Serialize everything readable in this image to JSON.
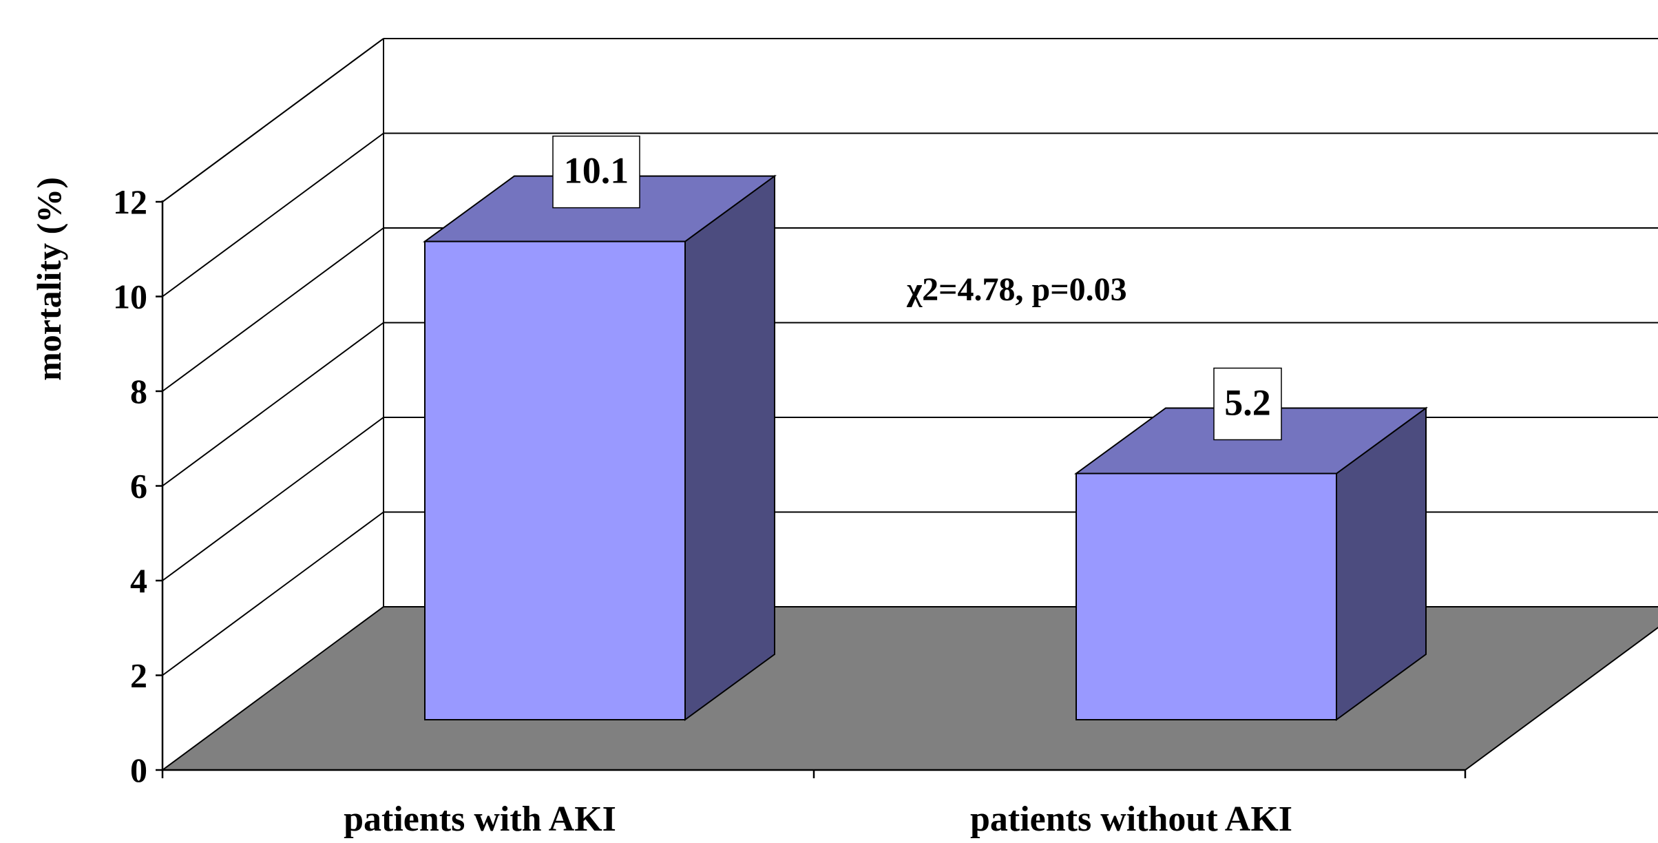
{
  "chart_data": {
    "type": "bar",
    "style": "3d",
    "categories": [
      "patients with AKI",
      "patients without AKI"
    ],
    "values": [
      10.1,
      5.2
    ],
    "data_labels": [
      "10.1",
      "5.2"
    ],
    "title": "",
    "xlabel": "",
    "ylabel": "mortality (%)",
    "ylim": [
      0,
      12
    ],
    "yticks": [
      0,
      2,
      4,
      6,
      8,
      10,
      12
    ],
    "ytick_labels": [
      "0",
      "2",
      "4",
      "6",
      "8",
      "10",
      "12"
    ],
    "grid": true,
    "legend": "none",
    "annotation": "χ2=4.78, p=0.03",
    "colors": {
      "bar_front": "#9999ff",
      "bar_top": "#7474bf",
      "bar_side": "#4c4c7f",
      "floor": "#808080",
      "background": "#ffffff",
      "line": "#000000"
    }
  }
}
